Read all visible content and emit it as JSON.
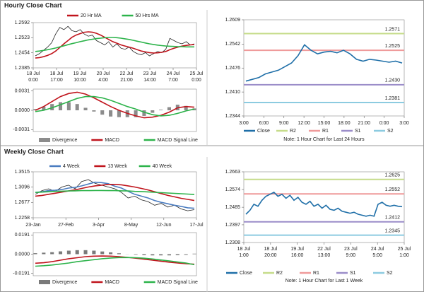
{
  "chart_data": [
    {
      "type": "line",
      "title": "Hourly Close Chart",
      "ylim": [
        1.2385,
        1.2592
      ],
      "yticks": [
        1.2385,
        1.2454,
        1.2523,
        1.2592
      ],
      "xlabels": [
        [
          "18 Jul",
          "0:00"
        ],
        [
          "18 Jul",
          "17:00"
        ],
        [
          "19 Jul",
          "10:00"
        ],
        [
          "20 Jul",
          "4:00"
        ],
        [
          "22 Jul",
          "21:00"
        ],
        [
          "23 Jul",
          "14:00"
        ],
        [
          "24 Jul",
          "7:00"
        ],
        [
          "25 Jul",
          "0:00"
        ]
      ],
      "series": [
        {
          "color": "#222222",
          "values": [
            1.244,
            1.245,
            1.2465,
            1.248,
            1.25,
            1.254,
            1.257,
            1.256,
            1.2575,
            1.2555,
            1.255,
            1.256,
            1.254,
            1.253,
            1.2535,
            1.251,
            1.25,
            1.249,
            1.2505,
            1.248,
            1.2495,
            1.2475,
            1.247,
            1.248,
            1.246,
            1.245,
            1.2445,
            1.2455,
            1.244,
            1.245,
            1.246,
            1.2455,
            1.247,
            1.252,
            1.251,
            1.25,
            1.2495,
            1.2505,
            1.249,
            1.2495
          ]
        },
        {
          "name": "20 Hr MA",
          "color": "#c0141c",
          "values": [
            1.243,
            1.2432,
            1.2436,
            1.2442,
            1.245,
            1.2462,
            1.2478,
            1.2495,
            1.251,
            1.2525,
            1.2535,
            1.2542,
            1.2548,
            1.255,
            1.2548,
            1.2543,
            1.2535,
            1.2525,
            1.2515,
            1.2505,
            1.2498,
            1.249,
            1.2485,
            1.248,
            1.2475,
            1.2468,
            1.2462,
            1.2458,
            1.2455,
            1.2453,
            1.2454,
            1.2456,
            1.246,
            1.2468,
            1.2475,
            1.248,
            1.2485,
            1.2488,
            1.249,
            1.2492
          ]
        },
        {
          "name": "50 Hrs MA",
          "color": "#2cb34a",
          "values": [
            1.246,
            1.2462,
            1.2465,
            1.2468,
            1.2472,
            1.2476,
            1.2481,
            1.2486,
            1.2491,
            1.2496,
            1.25,
            1.2505,
            1.2509,
            1.2513,
            1.2516,
            1.2519,
            1.2521,
            1.2523,
            1.2524,
            1.2524,
            1.2523,
            1.2521,
            1.2518,
            1.2515,
            1.2511,
            1.2507,
            1.2503,
            1.2499,
            1.2495,
            1.2492,
            1.2489,
            1.2487,
            1.2485,
            1.2484,
            1.2483,
            1.2482,
            1.2482,
            1.2481,
            1.2481,
            1.2481
          ]
        }
      ]
    },
    {
      "type": "line",
      "ylim": [
        -0.0034,
        0.0034
      ],
      "yticks": [
        0.0031,
        {
          "value": 0,
          "label": "0.0000"
        },
        -0.0031
      ],
      "series": [
        {
          "name": "Divergence",
          "kind": "bar",
          "color": "#8c8c8c",
          "values": [
            0.0002,
            0.0006,
            0.001,
            0.0013,
            0.0013,
            0.001,
            0.0004,
            -0.0002,
            -0.0007,
            -0.001,
            -0.0011,
            -0.0011,
            -0.0011,
            -0.0009,
            -0.0004,
            0.0001,
            0.0005,
            0.0009,
            0.0007,
            0.0003
          ]
        },
        {
          "name": "MACD",
          "color": "#c0141c",
          "values": [
            0.0,
            0.0006,
            0.0014,
            0.0022,
            0.0027,
            0.0029,
            0.0026,
            0.002,
            0.0013,
            0.0006,
            0.0,
            -0.0005,
            -0.0009,
            -0.0012,
            -0.0011,
            -0.0008,
            -0.0003,
            0.0004,
            0.0006,
            0.0005
          ]
        },
        {
          "name": "MACD Signal Line",
          "color": "#2cb34a",
          "values": [
            -0.0002,
            0.0,
            0.0004,
            0.0009,
            0.0014,
            0.0019,
            0.0022,
            0.0022,
            0.002,
            0.0016,
            0.0011,
            0.0006,
            0.0002,
            -0.0003,
            -0.0007,
            -0.0009,
            -0.0008,
            -0.0005,
            -0.0001,
            0.0002
          ]
        }
      ]
    },
    {
      "type": "line",
      "note": "Note: 1 Hour Chart for Last 24 Hours",
      "ylim": [
        1.2344,
        1.2609
      ],
      "yticks": [
        1.2344,
        {
          "value": 1.241,
          "label": "1.2410"
        },
        1.2476,
        1.2542,
        1.2609
      ],
      "xlabels": [
        "3:00",
        "6:00",
        "9:00",
        "12:00",
        "15:00",
        "18:00",
        "21:00",
        "0:00",
        "3:00"
      ],
      "series": [
        {
          "name": "Close",
          "color": "#1f6fa8",
          "values": [
            1.244,
            1.2445,
            1.245,
            1.246,
            1.2465,
            1.247,
            1.248,
            1.249,
            1.251,
            1.254,
            1.2525,
            1.2515,
            1.252,
            1.2522,
            1.2518,
            1.2525,
            1.2515,
            1.25,
            1.2495,
            1.25,
            1.2498,
            1.2495,
            1.2492,
            1.2495,
            1.249
          ]
        }
      ],
      "levels": [
        {
          "name": "R2",
          "color": "#c6dc8a",
          "value": 1.2571,
          "value_label": "1.2571"
        },
        {
          "name": "R1",
          "color": "#ef9a9a",
          "value": 1.2525,
          "value_label": "1.2525"
        },
        {
          "name": "S1",
          "color": "#9b8dc9",
          "value": 1.243,
          "value_label": "1.2430"
        },
        {
          "name": "S2",
          "color": "#8ccbe0",
          "value": 1.2381,
          "value_label": "1.2381"
        }
      ]
    },
    {
      "type": "line",
      "title": "Weekly Close Chart",
      "ylim": [
        1.2258,
        1.3515
      ],
      "yticks": [
        1.2258,
        1.2677,
        1.3096,
        1.3515
      ],
      "xlabels": [
        "23-Jan",
        "27-Feb",
        "3-Apr",
        "8-May",
        "12-Jun",
        "17-Jul"
      ],
      "series": [
        {
          "color": "#222222",
          "values": [
            1.29,
            1.3,
            1.305,
            1.298,
            1.31,
            1.315,
            1.305,
            1.325,
            1.33,
            1.32,
            1.315,
            1.31,
            1.305,
            1.295,
            1.28,
            1.285,
            1.275,
            1.27,
            1.26,
            1.265,
            1.255,
            1.26,
            1.25,
            1.245,
            1.248
          ]
        },
        {
          "name": "4 Week",
          "color": "#4a7cc0",
          "values": [
            1.295,
            1.297,
            1.3,
            1.301,
            1.303,
            1.307,
            1.309,
            1.313,
            1.318,
            1.323,
            1.322,
            1.319,
            1.312,
            1.307,
            1.298,
            1.29,
            1.285,
            1.28,
            1.273,
            1.268,
            1.264,
            1.26,
            1.257,
            1.253,
            1.252
          ]
        },
        {
          "name": "13 Week",
          "color": "#c0141c",
          "values": [
            1.285,
            1.287,
            1.29,
            1.293,
            1.296,
            1.299,
            1.302,
            1.306,
            1.31,
            1.313,
            1.315,
            1.317,
            1.317,
            1.316,
            1.313,
            1.31,
            1.306,
            1.302,
            1.297,
            1.292,
            1.287,
            1.283,
            1.279,
            1.276,
            1.273
          ]
        },
        {
          "name": "40 Week",
          "color": "#2cb34a",
          "values": [
            1.295,
            1.296,
            1.297,
            1.298,
            1.2985,
            1.299,
            1.2995,
            1.3,
            1.3,
            1.3005,
            1.3005,
            1.3,
            1.3,
            1.2995,
            1.299,
            1.298,
            1.2975,
            1.2965,
            1.2955,
            1.2945,
            1.2935,
            1.2925,
            1.2915,
            1.2905,
            1.2895
          ]
        }
      ]
    },
    {
      "type": "line",
      "ylim": [
        -0.0215,
        0.0215
      ],
      "yticks": [
        0.0191,
        {
          "value": 0,
          "label": "0.0000"
        },
        -0.0191
      ],
      "series": [
        {
          "name": "Divergence",
          "kind": "bar",
          "color": "#7a7a7a",
          "values": [
            0.001,
            0.0015,
            0.002,
            0.0028,
            0.0035,
            0.004,
            0.004,
            0.0035,
            0.0027,
            0.0018,
            0.0009,
            0.0001,
            -0.0005,
            -0.001,
            -0.0012,
            -0.0012,
            -0.0012,
            -0.001,
            -0.0007,
            0.0005
          ]
        },
        {
          "name": "MACD",
          "color": "#c0141c",
          "values": [
            -0.009,
            -0.0085,
            -0.0075,
            -0.006,
            -0.0045,
            -0.0035,
            -0.0025,
            -0.002,
            -0.0018,
            -0.002,
            -0.0025,
            -0.0032,
            -0.004,
            -0.005,
            -0.006,
            -0.007,
            -0.008,
            -0.0088,
            -0.0095,
            -0.01
          ]
        },
        {
          "name": "MACD Signal Line",
          "color": "#2cb34a",
          "values": [
            -0.012,
            -0.0115,
            -0.0108,
            -0.0098,
            -0.0088,
            -0.0075,
            -0.0065,
            -0.0055,
            -0.0045,
            -0.0038,
            -0.0034,
            -0.0033,
            -0.0035,
            -0.004,
            -0.0048,
            -0.0058,
            -0.0068,
            -0.0078,
            -0.0088,
            -0.0105
          ]
        }
      ]
    },
    {
      "type": "line",
      "note": "Note: 1 Hour Chart for Last 1 Week",
      "ylim": [
        1.2308,
        1.2663
      ],
      "yticks": [
        1.2308,
        1.2397,
        1.2485,
        1.2574,
        1.2663
      ],
      "xlabels": [
        [
          "18 Jul",
          "1:00"
        ],
        [
          "18 Jul",
          "20:00"
        ],
        [
          "19 Jul",
          "16:00"
        ],
        [
          "22 Jul",
          "13:00"
        ],
        [
          "23 Jul",
          "9:00"
        ],
        [
          "24 Jul",
          "5:00"
        ],
        [
          "25 Jul",
          "1:00"
        ]
      ],
      "series": [
        {
          "name": "Close",
          "color": "#1f6fa8",
          "values": [
            1.245,
            1.247,
            1.25,
            1.249,
            1.252,
            1.254,
            1.255,
            1.256,
            1.254,
            1.255,
            1.253,
            1.2545,
            1.252,
            1.2535,
            1.251,
            1.25,
            1.2515,
            1.249,
            1.25,
            1.248,
            1.2495,
            1.2475,
            1.247,
            1.248,
            1.2465,
            1.246,
            1.2455,
            1.246,
            1.245,
            1.2445,
            1.244,
            1.2445,
            1.244,
            1.25,
            1.251,
            1.2495,
            1.249,
            1.2495,
            1.249,
            1.2488
          ]
        }
      ],
      "levels": [
        {
          "name": "R2",
          "color": "#c6dc8a",
          "value": 1.2625,
          "value_label": "1.2625"
        },
        {
          "name": "R1",
          "color": "#ef9a9a",
          "value": 1.2552,
          "value_label": "1.2552"
        },
        {
          "name": "S1",
          "color": "#9b8dc9",
          "value": 1.2412,
          "value_label": "1.2412"
        },
        {
          "name": "S2",
          "color": "#8ccbe0",
          "value": 1.2345,
          "value_label": "1.2345"
        }
      ]
    }
  ]
}
